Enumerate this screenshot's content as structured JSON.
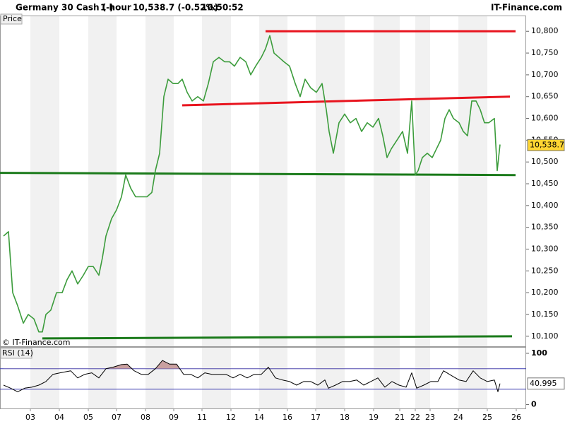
{
  "header": {
    "instrument": "Germany 30 Cash (-)",
    "interval": "1 hour",
    "quote": "10,538.7 (-0.52%)",
    "time": "10:50:52",
    "brand": "IT-Finance.com"
  },
  "chart_data": [
    {
      "type": "line",
      "label": "Price",
      "copyright": "© IT-Finance.com",
      "color": "#3c9c3c",
      "xlim": [
        0,
        372.5
      ],
      "ylim": [
        10077,
        10815
      ],
      "yticks": [
        {
          "value": 10100,
          "label": "10,100"
        },
        {
          "value": 10150,
          "label": "10,150"
        },
        {
          "value": 10200,
          "label": "10,200"
        },
        {
          "value": 10250,
          "label": "10,250"
        },
        {
          "value": 10300,
          "label": "10,300"
        },
        {
          "value": 10350,
          "label": "10,350"
        },
        {
          "value": 10400,
          "label": "10,400"
        },
        {
          "value": 10450,
          "label": "10,450"
        },
        {
          "value": 10500,
          "label": "10,500"
        },
        {
          "value": 10550,
          "label": "10,550"
        },
        {
          "value": 10600,
          "label": "10,600"
        },
        {
          "value": 10650,
          "label": "10,650"
        },
        {
          "value": 10700,
          "label": "10,700"
        },
        {
          "value": 10750,
          "label": "10,750"
        },
        {
          "value": 10800,
          "label": "10,800"
        }
      ],
      "x": [
        2.5,
        6,
        9,
        12.5,
        16.5,
        20,
        24,
        27.5,
        30,
        32.5,
        36,
        40,
        44,
        47.5,
        51,
        55,
        59,
        62.5,
        66,
        70,
        72.5,
        75,
        79,
        82.5,
        86,
        89,
        92.5,
        96,
        100,
        104,
        107.5,
        110,
        113,
        116,
        119,
        122.5,
        126,
        129,
        132.5,
        136,
        140,
        144,
        147.5,
        151,
        155,
        159,
        162.5,
        166,
        170,
        174,
        177.5,
        181,
        185,
        188,
        191,
        194,
        197.5,
        201,
        205,
        209,
        212.5,
        216,
        220,
        224,
        228,
        231,
        233,
        236,
        240,
        244,
        248,
        252,
        256,
        260,
        264,
        268,
        271,
        274,
        277,
        281,
        285,
        288.5,
        291.5,
        294,
        296,
        299,
        302.5,
        306,
        309,
        312,
        315,
        318,
        321,
        325,
        328,
        331,
        334,
        337,
        340,
        343,
        346,
        350,
        352,
        354
      ],
      "values": [
        10330,
        10340,
        10200,
        10170,
        10130,
        10150,
        10140,
        10110,
        10110,
        10150,
        10160,
        10200,
        10200,
        10230,
        10250,
        10220,
        10240,
        10260,
        10260,
        10240,
        10280,
        10330,
        10370,
        10390,
        10420,
        10470,
        10440,
        10420,
        10420,
        10420,
        10430,
        10480,
        10520,
        10650,
        10690,
        10680,
        10680,
        10690,
        10660,
        10640,
        10650,
        10640,
        10680,
        10730,
        10740,
        10730,
        10730,
        10720,
        10740,
        10730,
        10700,
        10720,
        10740,
        10760,
        10790,
        10750,
        10740,
        10730,
        10720,
        10680,
        10650,
        10690,
        10670,
        10660,
        10680,
        10620,
        10570,
        10520,
        10590,
        10610,
        10590,
        10600,
        10570,
        10590,
        10580,
        10600,
        10560,
        10510,
        10530,
        10550,
        10570,
        10520,
        10640,
        10470,
        10480,
        10510,
        10520,
        10510,
        10530,
        10550,
        10600,
        10620,
        10600,
        10590,
        10570,
        10560,
        10640,
        10640,
        10620,
        10590,
        10590,
        10600,
        10480,
        10540
      ],
      "lines": [
        {
          "color": "#e8141e",
          "x": [
            188,
            365
          ],
          "y": [
            10800,
            10800
          ]
        },
        {
          "color": "#e8141e",
          "x": [
            129,
            361
          ],
          "y": [
            10630,
            10650
          ]
        },
        {
          "color": "#1a7a1a",
          "x": [
            0,
            365
          ],
          "y": [
            10475,
            10470
          ]
        },
        {
          "color": "#1a7a1a",
          "x": [
            30,
            362.5
          ],
          "y": [
            10095,
            10100
          ]
        }
      ],
      "last": {
        "value": 10538.7,
        "label": "10,538.7"
      }
    },
    {
      "type": "line",
      "label": "RSI (14)",
      "color": "#000000",
      "levels": [
        70,
        30
      ],
      "level_color": "#3b3bb0",
      "overbought_fill": "#c9a0a0",
      "xlim": [
        0,
        372.5
      ],
      "ylim": [
        -7.5,
        111
      ],
      "yticks": [
        0,
        100
      ],
      "xticks": [
        {
          "value": 21.5,
          "label": "03"
        },
        {
          "value": 42,
          "label": "04"
        },
        {
          "value": 62.5,
          "label": "05"
        },
        {
          "value": 82.5,
          "label": "07"
        },
        {
          "value": 103,
          "label": "08"
        },
        {
          "value": 123,
          "label": "09"
        },
        {
          "value": 143,
          "label": "11"
        },
        {
          "value": 163.5,
          "label": "12"
        },
        {
          "value": 183.5,
          "label": "14"
        },
        {
          "value": 203.5,
          "label": "16"
        },
        {
          "value": 223.5,
          "label": "17"
        },
        {
          "value": 244,
          "label": "18"
        },
        {
          "value": 264.5,
          "label": "19"
        },
        {
          "value": 283,
          "label": "21"
        },
        {
          "value": 294,
          "label": "22"
        },
        {
          "value": 304.5,
          "label": "23"
        },
        {
          "value": 324.5,
          "label": "24"
        },
        {
          "value": 345,
          "label": "25"
        },
        {
          "value": 365.5,
          "label": "26"
        }
      ],
      "x": [
        2.5,
        7.5,
        12.5,
        17.5,
        22.5,
        27.5,
        32.5,
        37.5,
        42.5,
        50,
        55,
        60,
        65,
        70,
        75,
        80,
        86,
        90,
        95,
        100,
        105,
        110,
        115,
        120,
        125,
        130,
        135,
        140,
        145,
        150,
        155,
        160,
        165,
        170,
        175,
        180,
        185,
        190,
        195,
        200,
        205,
        210,
        215,
        220,
        225,
        230,
        232.5,
        237.5,
        242.5,
        247.5,
        252.5,
        257.5,
        262.5,
        267.5,
        272.5,
        277.5,
        282.5,
        287.5,
        291.5,
        295,
        300,
        305,
        310,
        314,
        320,
        325,
        330,
        335,
        340,
        345,
        350,
        352.5,
        354
      ],
      "values": [
        38,
        32,
        25,
        32,
        34,
        38,
        45,
        59,
        62,
        66,
        52,
        59,
        62,
        52,
        70,
        73,
        78,
        79,
        66,
        59,
        59,
        70,
        86,
        79,
        79,
        59,
        59,
        52,
        62,
        59,
        59,
        59,
        52,
        59,
        52,
        59,
        59,
        73,
        52,
        48,
        45,
        38,
        45,
        45,
        38,
        48,
        32,
        38,
        45,
        45,
        48,
        38,
        45,
        52,
        34,
        45,
        38,
        34,
        62,
        32,
        38,
        45,
        45,
        66,
        56,
        48,
        45,
        66,
        52,
        45,
        48,
        25,
        41
      ],
      "last": {
        "value": 40.995,
        "label": "40.995"
      }
    }
  ]
}
